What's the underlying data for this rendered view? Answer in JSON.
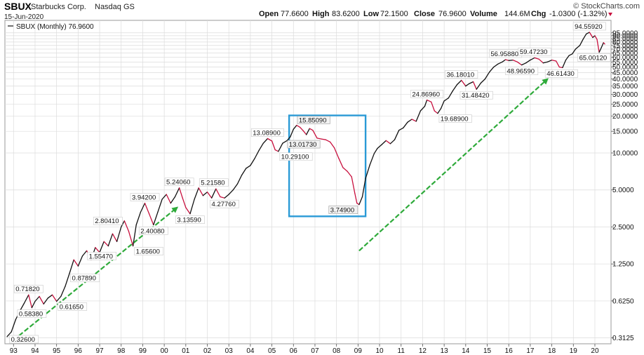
{
  "header": {
    "symbol": "SBUX",
    "company": "Starbucks Corp.",
    "exchange": "Nasdaq GS",
    "date": "15-Jun-2020",
    "open_label": "Open",
    "open": "77.6600",
    "high_label": "High",
    "high": "83.6200",
    "low_label": "Low",
    "low": "72.1500",
    "close_label": "Close",
    "close": "76.9600",
    "volume_label": "Volume",
    "volume": "144.6M",
    "change_label": "Chg",
    "change": "-1.0300 (-1.32%)",
    "change_icon": "triangle-down-icon",
    "brand": "© StockCharts.com"
  },
  "legend": {
    "label": "SBUX (Monthly) 76.9600"
  },
  "colors": {
    "up": "#111111",
    "down": "#c8103e",
    "arrow": "#2eaa3a",
    "box": "#2a9ad6",
    "grid": "#dcdcdc",
    "border": "#9a9a9a"
  },
  "chart_data": {
    "type": "line",
    "title": "SBUX (Monthly) 76.9600",
    "scale": "log",
    "ylim": [
      0.28,
      120
    ],
    "xlim": [
      1992.6,
      2020.75
    ],
    "y_ticks": [
      0.3125,
      0.625,
      1.25,
      2.5,
      5,
      10,
      15,
      20,
      25,
      30,
      35,
      40,
      45,
      50,
      55,
      60,
      65,
      70,
      75,
      80,
      85,
      90,
      95
    ],
    "y_tick_labels": [
      "0.3125",
      "0.6250",
      "1.2500",
      "2.5000",
      "5.0000",
      "10.0000",
      "15.0000",
      "20.0000",
      "25.0000",
      "30.0000",
      "35.0000",
      "40.0000",
      "45.0000",
      "50.0000",
      "55.0000",
      "60.0000",
      "65.0000",
      "70.0000",
      "75.0000",
      "80.0000",
      "85.0000",
      "90.0000",
      "95.0000"
    ],
    "x_ticks": [
      1993,
      1994,
      1995,
      1996,
      1997,
      1998,
      1999,
      2000,
      2001,
      2002,
      2003,
      2004,
      2005,
      2006,
      2007,
      2008,
      2009,
      2010,
      2011,
      2012,
      2013,
      2014,
      2015,
      2016,
      2017,
      2018,
      2019,
      2020
    ],
    "x_tick_labels": [
      "93",
      "94",
      "95",
      "96",
      "97",
      "98",
      "99",
      "00",
      "01",
      "02",
      "03",
      "04",
      "05",
      "06",
      "07",
      "08",
      "09",
      "10",
      "11",
      "12",
      "13",
      "14",
      "15",
      "16",
      "17",
      "18",
      "19",
      "20"
    ],
    "series": [
      {
        "name": "SBUX (Monthly)",
        "points": [
          [
            1992.7,
            0.32
          ],
          [
            1992.9,
            0.35
          ],
          [
            1993.1,
            0.44
          ],
          [
            1993.3,
            0.52
          ],
          [
            1993.5,
            0.6
          ],
          [
            1993.7,
            0.7
          ],
          [
            1993.85,
            0.55
          ],
          [
            1994.0,
            0.62
          ],
          [
            1994.2,
            0.68
          ],
          [
            1994.4,
            0.59
          ],
          [
            1994.6,
            0.66
          ],
          [
            1994.8,
            0.7
          ],
          [
            1995.0,
            0.62
          ],
          [
            1995.2,
            0.68
          ],
          [
            1995.4,
            0.82
          ],
          [
            1995.6,
            1.05
          ],
          [
            1995.8,
            1.35
          ],
          [
            1996.0,
            1.2
          ],
          [
            1996.2,
            1.45
          ],
          [
            1996.4,
            1.6
          ],
          [
            1996.6,
            1.35
          ],
          [
            1996.8,
            1.7
          ],
          [
            1997.0,
            1.55
          ],
          [
            1997.2,
            1.9
          ],
          [
            1997.4,
            1.75
          ],
          [
            1997.6,
            2.2
          ],
          [
            1997.8,
            1.9
          ],
          [
            1998.0,
            2.5
          ],
          [
            1998.15,
            2.8
          ],
          [
            1998.35,
            2.3
          ],
          [
            1998.55,
            1.75
          ],
          [
            1998.7,
            2.6
          ],
          [
            1998.9,
            3.3
          ],
          [
            1999.1,
            3.9
          ],
          [
            1999.3,
            3.2
          ],
          [
            1999.5,
            2.6
          ],
          [
            1999.7,
            3.3
          ],
          [
            1999.9,
            4.2
          ],
          [
            2000.1,
            4.6
          ],
          [
            2000.3,
            3.9
          ],
          [
            2000.5,
            4.4
          ],
          [
            2000.7,
            5.2
          ],
          [
            2000.85,
            4.3
          ],
          [
            2001.0,
            3.6
          ],
          [
            2001.2,
            3.2
          ],
          [
            2001.4,
            4.2
          ],
          [
            2001.6,
            5.2
          ],
          [
            2001.8,
            4.5
          ],
          [
            2002.0,
            4.8
          ],
          [
            2002.2,
            4.3
          ],
          [
            2002.4,
            5.1
          ],
          [
            2002.6,
            4.4
          ],
          [
            2002.8,
            4.3
          ],
          [
            2003.0,
            4.6
          ],
          [
            2003.2,
            5.0
          ],
          [
            2003.4,
            5.6
          ],
          [
            2003.6,
            6.6
          ],
          [
            2003.8,
            7.5
          ],
          [
            2004.0,
            7.9
          ],
          [
            2004.2,
            9.0
          ],
          [
            2004.4,
            10.5
          ],
          [
            2004.6,
            12.0
          ],
          [
            2004.8,
            13.1
          ],
          [
            2005.0,
            12.5
          ],
          [
            2005.15,
            10.6
          ],
          [
            2005.3,
            10.3
          ],
          [
            2005.5,
            12.0
          ],
          [
            2005.7,
            12.6
          ],
          [
            2005.85,
            13.5
          ],
          [
            2006.0,
            15.6
          ],
          [
            2006.15,
            16.8
          ],
          [
            2006.3,
            16.2
          ],
          [
            2006.45,
            15.2
          ],
          [
            2006.6,
            14.1
          ],
          [
            2006.75,
            15.8
          ],
          [
            2006.9,
            15.3
          ],
          [
            2007.1,
            13.2
          ],
          [
            2007.3,
            13.0
          ],
          [
            2007.5,
            12.8
          ],
          [
            2007.7,
            12.3
          ],
          [
            2007.9,
            11.0
          ],
          [
            2008.1,
            9.1
          ],
          [
            2008.3,
            7.6
          ],
          [
            2008.5,
            7.1
          ],
          [
            2008.7,
            6.4
          ],
          [
            2008.85,
            4.7
          ],
          [
            2008.95,
            3.9
          ],
          [
            2009.05,
            3.8
          ],
          [
            2009.2,
            4.4
          ],
          [
            2009.35,
            6.2
          ],
          [
            2009.55,
            8.0
          ],
          [
            2009.75,
            9.9
          ],
          [
            2009.9,
            10.9
          ],
          [
            2010.1,
            11.7
          ],
          [
            2010.3,
            12.6
          ],
          [
            2010.5,
            11.9
          ],
          [
            2010.7,
            12.8
          ],
          [
            2010.9,
            15.3
          ],
          [
            2011.1,
            16.0
          ],
          [
            2011.3,
            17.8
          ],
          [
            2011.5,
            18.8
          ],
          [
            2011.7,
            18.1
          ],
          [
            2011.9,
            22.0
          ],
          [
            2012.1,
            24.0
          ],
          [
            2012.2,
            27.0
          ],
          [
            2012.4,
            26.0
          ],
          [
            2012.55,
            22.0
          ],
          [
            2012.7,
            21.0
          ],
          [
            2012.85,
            23.0
          ],
          [
            2013.0,
            26.5
          ],
          [
            2013.2,
            28.0
          ],
          [
            2013.4,
            32.0
          ],
          [
            2013.6,
            36.0
          ],
          [
            2013.8,
            39.0
          ],
          [
            2013.9,
            37.0
          ],
          [
            2014.0,
            35.0
          ],
          [
            2014.15,
            36.5
          ],
          [
            2014.35,
            38.0
          ],
          [
            2014.5,
            33.0
          ],
          [
            2014.7,
            37.0
          ],
          [
            2014.9,
            40.0
          ],
          [
            2015.1,
            45.5
          ],
          [
            2015.3,
            50.0
          ],
          [
            2015.5,
            53.0
          ],
          [
            2015.7,
            55.0
          ],
          [
            2015.85,
            57.5
          ],
          [
            2016.0,
            56.5
          ],
          [
            2016.2,
            57.0
          ],
          [
            2016.4,
            55.0
          ],
          [
            2016.6,
            52.0
          ],
          [
            2016.8,
            54.0
          ],
          [
            2017.0,
            57.0
          ],
          [
            2017.2,
            59.5
          ],
          [
            2017.4,
            58.0
          ],
          [
            2017.6,
            54.0
          ],
          [
            2017.8,
            55.0
          ],
          [
            2018.0,
            57.0
          ],
          [
            2018.2,
            56.0
          ],
          [
            2018.35,
            50.0
          ],
          [
            2018.5,
            49.5
          ],
          [
            2018.65,
            57.0
          ],
          [
            2018.8,
            62.0
          ],
          [
            2018.95,
            64.0
          ],
          [
            2019.1,
            70.0
          ],
          [
            2019.3,
            75.0
          ],
          [
            2019.45,
            84.0
          ],
          [
            2019.6,
            93.0
          ],
          [
            2019.75,
            96.0
          ],
          [
            2019.9,
            87.0
          ],
          [
            2020.0,
            90.0
          ],
          [
            2020.1,
            84.0
          ],
          [
            2020.2,
            66.0
          ],
          [
            2020.3,
            72.0
          ],
          [
            2020.4,
            79.0
          ],
          [
            2020.46,
            76.96
          ]
        ]
      }
    ],
    "annotations": [
      {
        "text": "0.32600",
        "x": 1992.75,
        "y": 0.32,
        "pos": "below-right"
      },
      {
        "text": "0.71820",
        "x": 1993.7,
        "y": 0.7,
        "pos": "above"
      },
      {
        "text": "0.58380",
        "x": 1993.85,
        "y": 0.55,
        "pos": "below"
      },
      {
        "text": "0.61650",
        "x": 1995.0,
        "y": 0.62,
        "pos": "below-right"
      },
      {
        "text": "0.87890",
        "x": 1995.55,
        "y": 0.96,
        "pos": "right"
      },
      {
        "text": "1.55470",
        "x": 1997.1,
        "y": 1.62,
        "pos": "below"
      },
      {
        "text": "1.65600",
        "x": 1998.55,
        "y": 1.75,
        "pos": "below-right"
      },
      {
        "text": "2.80410",
        "x": 1998.15,
        "y": 2.8,
        "pos": "left"
      },
      {
        "text": "2.40080",
        "x": 1999.5,
        "y": 2.6,
        "pos": "below"
      },
      {
        "text": "3.94200",
        "x": 1999.1,
        "y": 3.9,
        "pos": "above"
      },
      {
        "text": "5.24060",
        "x": 2000.7,
        "y": 5.2,
        "pos": "above"
      },
      {
        "text": "3.13590",
        "x": 2001.2,
        "y": 3.2,
        "pos": "below"
      },
      {
        "text": "5.21580",
        "x": 2001.6,
        "y": 5.2,
        "pos": "above-right"
      },
      {
        "text": "4.27760",
        "x": 2002.8,
        "y": 4.3,
        "pos": "below"
      },
      {
        "text": "13.08900",
        "x": 2004.8,
        "y": 13.1,
        "pos": "above"
      },
      {
        "text": "10.29100",
        "x": 2005.3,
        "y": 10.3,
        "pos": "below-right"
      },
      {
        "text": "15.85090",
        "x": 2006.15,
        "y": 16.8,
        "pos": "above-right",
        "highlight": true
      },
      {
        "text": "13.01730",
        "x": 2007.3,
        "y": 13.0,
        "pos": "below-left",
        "highlight": true
      },
      {
        "text": "3.74900",
        "x": 2009.05,
        "y": 3.8,
        "pos": "below-left",
        "highlight": true
      },
      {
        "text": "24.86960",
        "x": 2012.2,
        "y": 27.0,
        "pos": "above"
      },
      {
        "text": "19.68900",
        "x": 2012.7,
        "y": 21.0,
        "pos": "below-right"
      },
      {
        "text": "36.18010",
        "x": 2013.8,
        "y": 39.0,
        "pos": "above"
      },
      {
        "text": "31.48420",
        "x": 2014.5,
        "y": 33.0,
        "pos": "below"
      },
      {
        "text": "56.95880",
        "x": 2015.85,
        "y": 57.5,
        "pos": "above"
      },
      {
        "text": "48.96590",
        "x": 2016.6,
        "y": 52.0,
        "pos": "below"
      },
      {
        "text": "59.47230",
        "x": 2017.2,
        "y": 59.5,
        "pos": "above"
      },
      {
        "text": "46.61430",
        "x": 2018.45,
        "y": 49.5,
        "pos": "below"
      },
      {
        "text": "94.55920",
        "x": 2019.75,
        "y": 96.0,
        "pos": "above"
      },
      {
        "text": "65.00120",
        "x": 2020.2,
        "y": 66.0,
        "pos": "below-right"
      }
    ],
    "trend_arrows": [
      {
        "from": [
          1993.0,
          0.3
        ],
        "to": [
          2000.6,
          3.6
        ]
      },
      {
        "from": [
          2009.05,
          1.6
        ],
        "to": [
          2017.8,
          40.0
        ]
      }
    ],
    "highlight_region": {
      "x_range": [
        2005.8,
        2009.35
      ],
      "y_range": [
        3.05,
        20.2
      ]
    }
  }
}
